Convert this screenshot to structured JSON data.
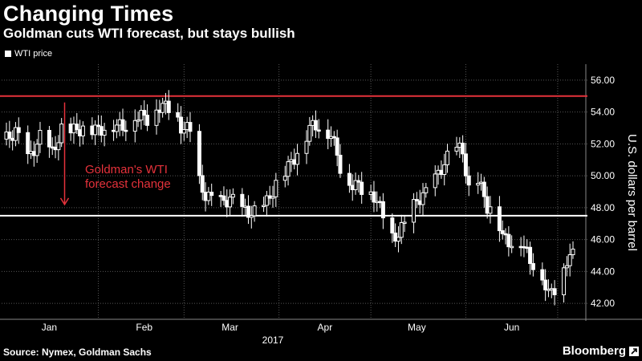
{
  "header": {
    "title": "Changing Times",
    "subtitle": "Goldman cuts WTI forecast, but stays bullish",
    "legend_label": "WTI price"
  },
  "footer": {
    "source": "Source: Nymex, Goldman Sachs",
    "brand": "Bloomberg"
  },
  "colors": {
    "background": "#000000",
    "candle": "#ffffff",
    "grid": "#555555",
    "annotation": "#e5323b"
  },
  "chart_data": {
    "type": "candlestick",
    "ylabel": "U.S. dollars per barrel",
    "xlabel": "2017",
    "ylim": [
      41,
      57
    ],
    "y_ticks": [
      "42.00",
      "44.00",
      "46.00",
      "48.00",
      "50.00",
      "52.00",
      "54.00",
      "56.00"
    ],
    "x_ticks": [
      {
        "label": "Jan",
        "day": 15
      },
      {
        "label": "Feb",
        "day": 46
      },
      {
        "label": "Mar",
        "day": 74
      },
      {
        "label": "Apr",
        "day": 105
      },
      {
        "label": "May",
        "day": 135
      },
      {
        "label": "Jun",
        "day": 166
      }
    ],
    "x_range_days": [
      1,
      186
    ],
    "old_forecast": 55.0,
    "new_forecast": 47.5,
    "annotation": {
      "text_lines": [
        "Goldman's WTI",
        "forecast change"
      ],
      "arrow_day": 20,
      "arrow_from": 54.6,
      "arrow_to": 48.2
    },
    "grid": true,
    "close_series": [
      {
        "day": 1,
        "close": 52.3
      },
      {
        "day": 4,
        "close": 52.8
      },
      {
        "day": 8,
        "close": 51.0
      },
      {
        "day": 12,
        "close": 52.4
      },
      {
        "day": 16,
        "close": 51.4
      },
      {
        "day": 19,
        "close": 52.9
      },
      {
        "day": 23,
        "close": 52.8
      },
      {
        "day": 27,
        "close": 53.1
      },
      {
        "day": 31,
        "close": 52.8
      },
      {
        "day": 35,
        "close": 53.3
      },
      {
        "day": 39,
        "close": 53.0
      },
      {
        "day": 43,
        "close": 53.8
      },
      {
        "day": 47,
        "close": 53.6
      },
      {
        "day": 51,
        "close": 54.4
      },
      {
        "day": 55,
        "close": 54.2
      },
      {
        "day": 58,
        "close": 53.1
      },
      {
        "day": 61,
        "close": 52.8
      },
      {
        "day": 63,
        "close": 50.0
      },
      {
        "day": 66,
        "close": 48.8
      },
      {
        "day": 70,
        "close": 48.2
      },
      {
        "day": 74,
        "close": 48.6
      },
      {
        "day": 78,
        "close": 47.8
      },
      {
        "day": 82,
        "close": 47.7
      },
      {
        "day": 86,
        "close": 48.3
      },
      {
        "day": 89,
        "close": 49.5
      },
      {
        "day": 93,
        "close": 50.5
      },
      {
        "day": 97,
        "close": 51.8
      },
      {
        "day": 100,
        "close": 53.0
      },
      {
        "day": 103,
        "close": 53.2
      },
      {
        "day": 107,
        "close": 52.6
      },
      {
        "day": 110,
        "close": 50.6
      },
      {
        "day": 113,
        "close": 49.6
      },
      {
        "day": 117,
        "close": 49.2
      },
      {
        "day": 121,
        "close": 48.8
      },
      {
        "day": 124,
        "close": 47.5
      },
      {
        "day": 126,
        "close": 45.9
      },
      {
        "day": 129,
        "close": 46.4
      },
      {
        "day": 132,
        "close": 47.2
      },
      {
        "day": 135,
        "close": 48.5
      },
      {
        "day": 139,
        "close": 49.0
      },
      {
        "day": 143,
        "close": 50.5
      },
      {
        "day": 147,
        "close": 51.7
      },
      {
        "day": 150,
        "close": 51.6
      },
      {
        "day": 152,
        "close": 49.1
      },
      {
        "day": 155,
        "close": 49.7
      },
      {
        "day": 158,
        "close": 48.1
      },
      {
        "day": 161,
        "close": 47.8
      },
      {
        "day": 163,
        "close": 46.1
      },
      {
        "day": 166,
        "close": 45.8
      },
      {
        "day": 169,
        "close": 46.0
      },
      {
        "day": 172,
        "close": 44.6
      },
      {
        "day": 175,
        "close": 44.4
      },
      {
        "day": 178,
        "close": 42.5
      },
      {
        "day": 181,
        "close": 43.2
      },
      {
        "day": 184,
        "close": 44.8
      },
      {
        "day": 186,
        "close": 45.0
      }
    ]
  }
}
